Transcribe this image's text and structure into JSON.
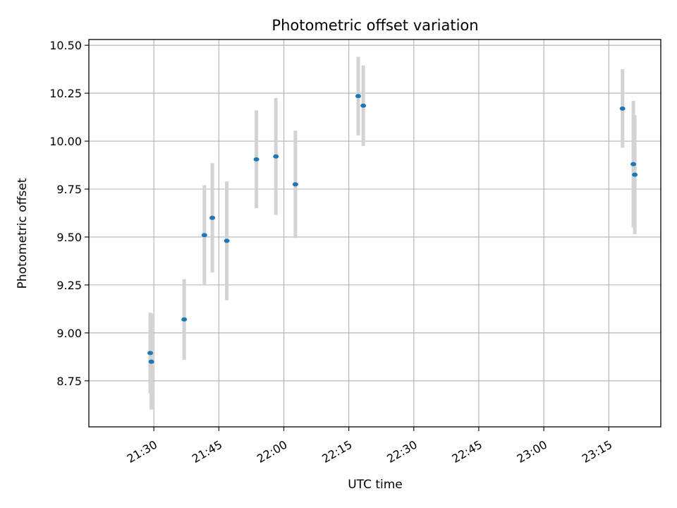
{
  "chart_data": {
    "type": "scatter",
    "title": "Photometric offset variation",
    "xlabel": "UTC time",
    "ylabel": "Photometric offset",
    "xlim": [
      "21:15",
      "23:27"
    ],
    "ylim": [
      8.51,
      10.53
    ],
    "x_ticks": [
      "21:30",
      "21:45",
      "22:00",
      "22:15",
      "22:30",
      "22:45",
      "23:00",
      "23:15"
    ],
    "y_ticks": [
      8.75,
      9.0,
      9.25,
      9.5,
      9.75,
      10.0,
      10.25,
      10.5
    ],
    "y_tick_labels": [
      "8.75",
      "9.00",
      "9.25",
      "9.50",
      "9.75",
      "10.00",
      "10.25",
      "10.50"
    ],
    "grid": true,
    "point_color": "#1f77b4",
    "errorbar_color": "#d3d3d3",
    "points": [
      {
        "time": "21:29:10",
        "y": 8.895,
        "err": 0.21
      },
      {
        "time": "21:29:25",
        "y": 8.85,
        "err": 0.25
      },
      {
        "time": "21:37:00",
        "y": 9.07,
        "err": 0.21
      },
      {
        "time": "21:41:40",
        "y": 9.51,
        "err": 0.26
      },
      {
        "time": "21:43:30",
        "y": 9.6,
        "err": 0.285
      },
      {
        "time": "21:46:50",
        "y": 9.48,
        "err": 0.31
      },
      {
        "time": "21:53:40",
        "y": 9.905,
        "err": 0.255
      },
      {
        "time": "21:58:10",
        "y": 9.92,
        "err": 0.305
      },
      {
        "time": "22:02:40",
        "y": 9.775,
        "err": 0.28
      },
      {
        "time": "22:17:10",
        "y": 10.235,
        "err": 0.205
      },
      {
        "time": "22:18:20",
        "y": 10.185,
        "err": 0.21
      },
      {
        "time": "23:18:10",
        "y": 10.17,
        "err": 0.205
      },
      {
        "time": "23:20:40",
        "y": 9.88,
        "err": 0.33
      },
      {
        "time": "23:21:00",
        "y": 9.825,
        "err": 0.31
      }
    ]
  }
}
